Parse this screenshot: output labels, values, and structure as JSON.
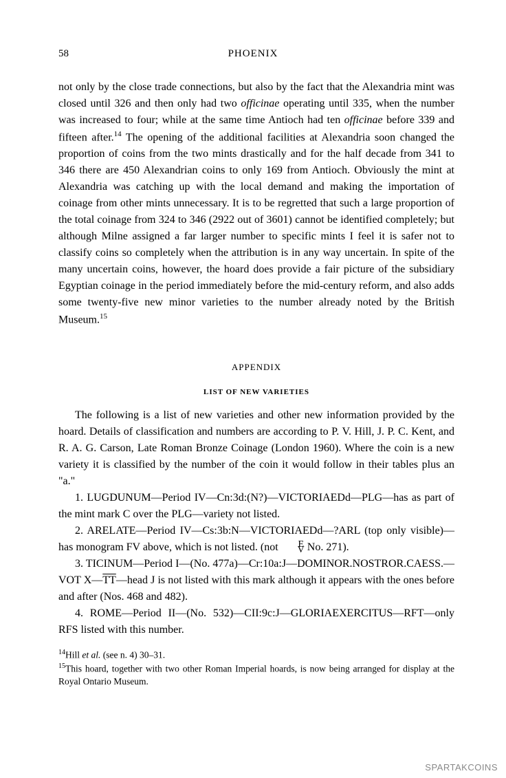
{
  "page": {
    "number": "58",
    "journal_title": "PHOENIX"
  },
  "body": {
    "text_part1": "not only by the close trade connections, but also by the fact that the Alexandria mint was closed until 326 and then only had two ",
    "italic1": "officinae",
    "text_part2": " operating until 335, when the number was increased to four; while at the same time Antioch had ten ",
    "italic2": "officinae",
    "text_part3": " before 339 and fifteen after.",
    "sup1": "14",
    "text_part4": " The opening of the additional facilities at Alexandria soon changed the proportion of coins from the two mints drastically and for the half decade from 341 to 346 there are 450 Alexandrian coins to only 169 from Antioch. Obviously the mint at Alexandria was catching up with the local demand and making the importation of coinage from other mints unnecessary. It is to be regretted that such a large proportion of the total coinage from 324 to 346 (2922 out of 3601) cannot be identified completely; but although Milne assigned a far larger number to specific mints I feel it is safer not to classify coins so completely when the attribution is in any way uncertain. In spite of the many uncertain coins, however, the hoard does provide a fair picture of the subsidiary Egyptian coinage in the period immediately before the mid-century reform, and also adds some twenty-five new minor varieties to the number already noted by the British Museum.",
    "sup2": "15"
  },
  "appendix": {
    "heading": "APPENDIX",
    "subheading": "LIST OF NEW VARIETIES",
    "intro_part1": "The following is a list of new varieties and other new information provided by the hoard. Details of classification and numbers are according to P. V. Hill, J. P. C. Kent, and R. A. G. Carson, ",
    "intro_italic": "Late Roman Bronze Coinage",
    "intro_part2": " (London 1960). Where the coin is a new variety it is classified by the number of the coin it would follow in their tables plus an \"a.\"",
    "item1": "1. LUGDUNUM—Period IV—Cn:3d:(N?)—VICTORIAEDd—PLG—has as part of the mint mark C over the PLG—variety not listed.",
    "item2_part1": "2. ARELATE—Period IV—Cs:3b:N—VICTORIAEDd—?ARL (top only visible)—has monogram FV above, which is not listed. (not ",
    "item2_stack_top": "E",
    "item2_stack_bottom": "V",
    "item2_part2": " No. 271).",
    "item3_part1": "3. TICINUM—Period I—(No. 477a)—Cr:10a:J—DOMINOR.NOSTROR.CAESS.—VOT X—",
    "item3_overline": "TT",
    "item3_part2": "—head J is not listed with this mark although it appears with the ones before and after (Nos. 468 and 482).",
    "item4": "4. ROME—Period II—(No. 532)—CII:9c:J—GLORIAEXERCITUS—RFT—only RFS listed with this number."
  },
  "footnotes": {
    "fn14_sup": "14",
    "fn14_part1": "Hill ",
    "fn14_italic": "et al.",
    "fn14_part2": " (see n. 4) 30–31.",
    "fn15_sup": "15",
    "fn15_text": "This hoard, together with two other Roman Imperial hoards, is now being arranged for display at the Royal Ontario Museum."
  },
  "watermark": "SPARTAKCOINS"
}
